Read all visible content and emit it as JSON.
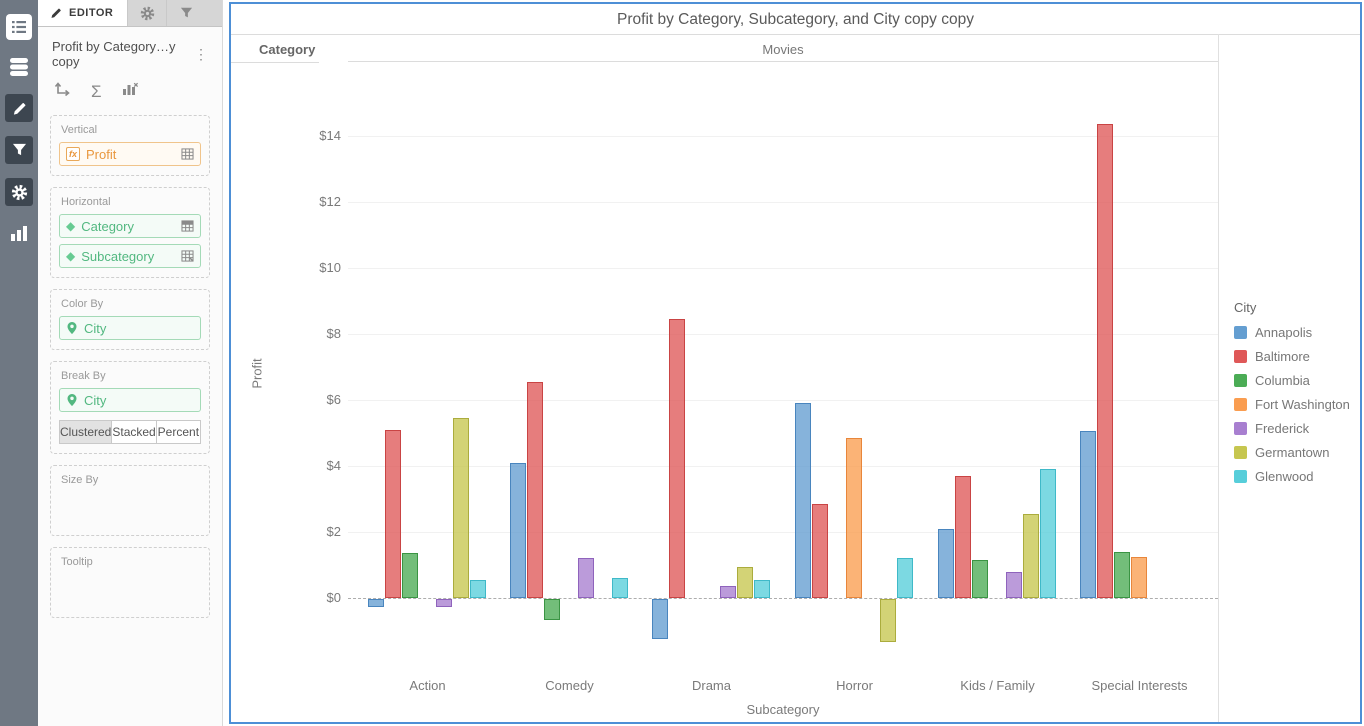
{
  "left_rail": {
    "icons": [
      "list",
      "datasource",
      "pencil",
      "filter",
      "gear",
      "chart-bars"
    ]
  },
  "editor_panel": {
    "tab_label": "EDITOR",
    "title": "Profit by Category…y copy",
    "sections": {
      "vertical": {
        "label": "Vertical",
        "field": "Profit"
      },
      "horizontal": {
        "label": "Horizontal",
        "field1": "Category",
        "field2": "Subcategory"
      },
      "color_by": {
        "label": "Color By",
        "field": "City"
      },
      "break_by": {
        "label": "Break By",
        "field": "City",
        "modes": [
          "Clustered",
          "Stacked",
          "Percent"
        ],
        "selected_mode": "Clustered"
      },
      "size_by": {
        "label": "Size By"
      },
      "tooltip": {
        "label": "Tooltip"
      }
    }
  },
  "chart_header": {
    "title": "Profit by Category, Subcategory, and City copy copy",
    "row_label": "Category",
    "col_label": "Movies"
  },
  "chart_data": {
    "type": "bar",
    "title": "Profit by Category, Subcategory, and City copy copy",
    "panel_header": {
      "row_label": "Category",
      "col_label": "Movies"
    },
    "categories": [
      "Action",
      "Comedy",
      "Drama",
      "Horror",
      "Kids / Family",
      "Special Interests"
    ],
    "series": [
      {
        "name": "Annapolis",
        "color": "#649ED1",
        "border": "#4985BE",
        "values": [
          -0.25,
          4.1,
          -1.2,
          5.9,
          2.1,
          5.05
        ]
      },
      {
        "name": "Baltimore",
        "color": "#DF5858",
        "border": "#C94444",
        "values": [
          5.1,
          6.55,
          8.45,
          2.85,
          3.7,
          14.35
        ]
      },
      {
        "name": "Columbia",
        "color": "#4BAC55",
        "border": "#3A9443",
        "values": [
          1.35,
          -0.65,
          null,
          null,
          1.15,
          1.4
        ]
      },
      {
        "name": "Fort Washington",
        "color": "#FA9D50",
        "border": "#E8863B",
        "values": [
          null,
          null,
          null,
          4.85,
          null,
          1.25
        ]
      },
      {
        "name": "Frederick",
        "color": "#A87FD0",
        "border": "#8F63BC",
        "values": [
          -0.25,
          1.2,
          0.35,
          null,
          0.8,
          null
        ]
      },
      {
        "name": "Germantown",
        "color": "#C6C64F",
        "border": "#ABAC3D",
        "values": [
          5.45,
          null,
          0.95,
          -1.3,
          2.55,
          null
        ]
      },
      {
        "name": "Glenwood",
        "color": "#57CEDA",
        "border": "#3FB9C8",
        "values": [
          0.55,
          0.6,
          0.55,
          1.2,
          3.9,
          null
        ]
      }
    ],
    "xlabel": "Subcategory",
    "ylabel": "Profit",
    "ylim": [
      -2,
      15
    ],
    "ytick_values": [
      0,
      2,
      4,
      6,
      8,
      10,
      12,
      14
    ],
    "yticks": [
      "$0",
      "$2",
      "$4",
      "$6",
      "$8",
      "$10",
      "$12",
      "$14"
    ],
    "grid": true,
    "legend_title": "City",
    "legend_position": "right"
  }
}
